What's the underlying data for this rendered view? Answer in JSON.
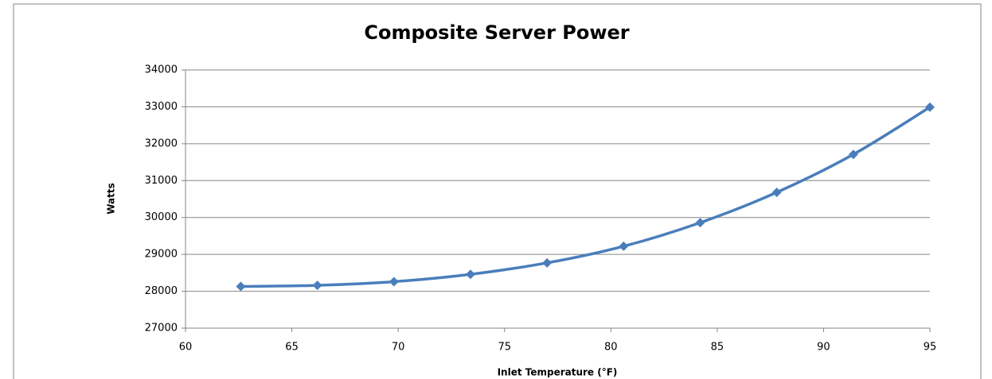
{
  "chart_data": {
    "type": "line",
    "title": "Composite Server Power",
    "xlabel": "Inlet Temperature (°F)",
    "ylabel": "Watts",
    "x": [
      62.6,
      66.2,
      69.8,
      73.4,
      77,
      80.6,
      84.2,
      87.8,
      91.4,
      95
    ],
    "values": [
      28130,
      28160,
      28260,
      28460,
      28770,
      29220,
      29860,
      30680,
      31710,
      32990
    ],
    "color": "#4a7ebb",
    "xlim": [
      60,
      95
    ],
    "xticks": [
      60,
      65,
      70,
      75,
      80,
      85,
      90,
      95
    ],
    "ylim": [
      27000,
      34000
    ],
    "yticks": [
      27000,
      28000,
      29000,
      30000,
      31000,
      32000,
      33000,
      34000
    ],
    "grid": true,
    "smooth": true
  }
}
